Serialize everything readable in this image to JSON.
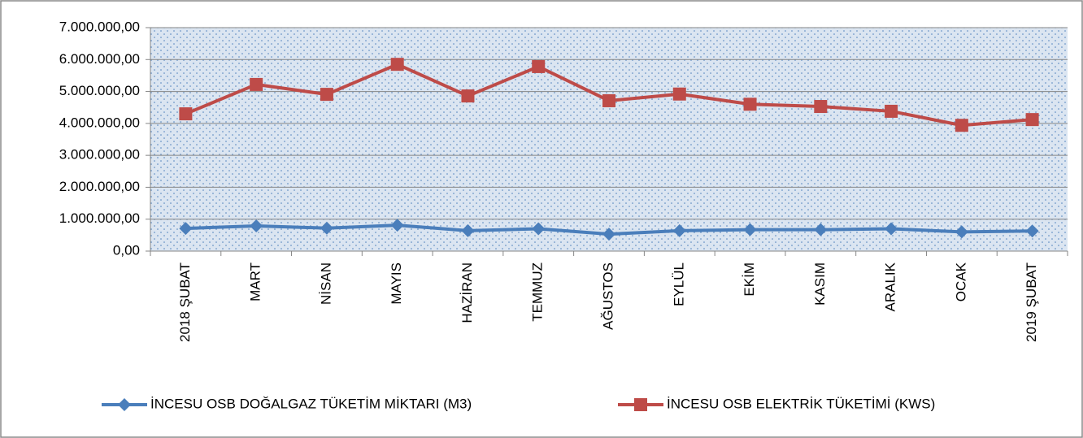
{
  "chart_data": {
    "type": "line",
    "categories": [
      "2018 ŞUBAT",
      "MART",
      "NİSAN",
      "MAYIS",
      "HAZİRAN",
      "TEMMUZ",
      "AĞUSTOS",
      "EYLÜL",
      "EKİM",
      "KASIM",
      "ARALIK",
      "OCAK",
      "2019 ŞUBAT"
    ],
    "series": [
      {
        "name": "İNCESU OSB DOĞALGAZ TÜKETİM MİKTARI (M3)",
        "color": "#4a7ebb",
        "marker": "diamond",
        "values": [
          710000,
          790000,
          720000,
          810000,
          640000,
          700000,
          530000,
          640000,
          670000,
          670000,
          700000,
          600000,
          630000
        ]
      },
      {
        "name": "İNCESU OSB ELEKTRİK TÜKETİMİ (KWS)",
        "color": "#be4b48",
        "marker": "square",
        "values": [
          4300000,
          5220000,
          4910000,
          5850000,
          4860000,
          5780000,
          4710000,
          4920000,
          4600000,
          4530000,
          4380000,
          3940000,
          4120000
        ]
      }
    ],
    "ylim": [
      0,
      7000000
    ],
    "yticks": [
      {
        "value": 0,
        "label": "0,00"
      },
      {
        "value": 1000000,
        "label": "1.000.000,00"
      },
      {
        "value": 2000000,
        "label": "2.000.000,00"
      },
      {
        "value": 3000000,
        "label": "3.000.000,00"
      },
      {
        "value": 4000000,
        "label": "4.000.000,00"
      },
      {
        "value": 5000000,
        "label": "5.000.000,00"
      },
      {
        "value": 6000000,
        "label": "6.000.000,00"
      },
      {
        "value": 7000000,
        "label": "7.000.000,00"
      }
    ],
    "grid": true,
    "legend": "bottom"
  }
}
